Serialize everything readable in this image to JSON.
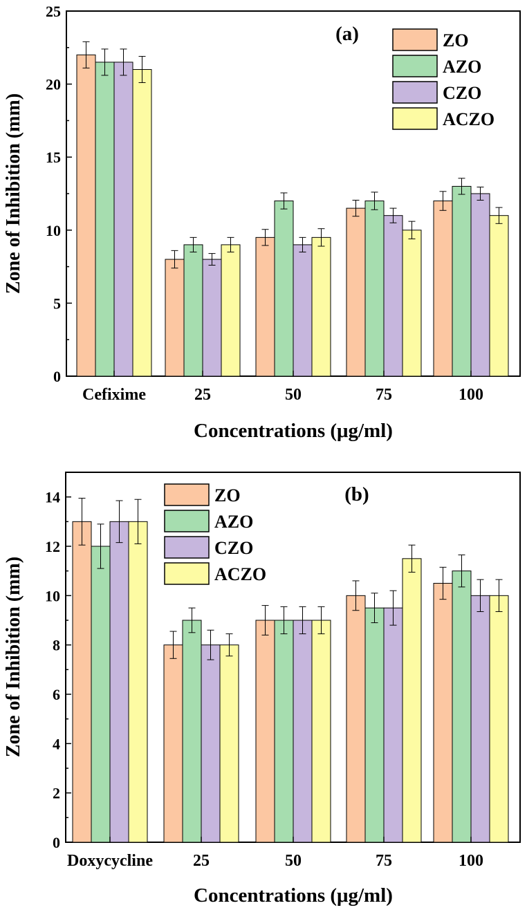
{
  "colors": {
    "ZO": "#FCC7A2",
    "AZO": "#A6DDAF",
    "CZO": "#C6B6DD",
    "ACZO": "#FDFBA3",
    "stroke": "#000000"
  },
  "chart_data": [
    {
      "type": "bar",
      "panel_label": "(a)",
      "xlabel": "Concentrations (μg/ml)",
      "ylabel": "Zone of Inhibition (mm)",
      "ylim": [
        0,
        25
      ],
      "yticks": [
        0,
        5,
        10,
        15,
        20,
        25
      ],
      "y_tick_labels": [
        "0",
        "5",
        "10",
        "15",
        "20",
        "25"
      ],
      "legend_position": "top-right",
      "categories": [
        "Cefixime",
        "25",
        "50",
        "75",
        "100"
      ],
      "series": [
        {
          "name": "ZO",
          "color_key": "ZO",
          "values": [
            22,
            8,
            9.5,
            11.5,
            12
          ],
          "errors": [
            0.9,
            0.6,
            0.55,
            0.55,
            0.65
          ]
        },
        {
          "name": "AZO",
          "color_key": "AZO",
          "values": [
            21.5,
            9,
            12,
            12,
            13
          ],
          "errors": [
            0.9,
            0.5,
            0.55,
            0.6,
            0.55
          ]
        },
        {
          "name": "CZO",
          "color_key": "CZO",
          "values": [
            21.5,
            8,
            9,
            11,
            12.5
          ],
          "errors": [
            0.9,
            0.4,
            0.5,
            0.5,
            0.45
          ]
        },
        {
          "name": "ACZO",
          "color_key": "ACZO",
          "values": [
            21,
            9,
            9.5,
            10,
            11
          ],
          "errors": [
            0.9,
            0.5,
            0.6,
            0.6,
            0.55
          ]
        }
      ]
    },
    {
      "type": "bar",
      "panel_label": "(b)",
      "xlabel": "Concentrations (μg/ml)",
      "ylabel": "Zone of Inhibition (mm)",
      "ylim": [
        0,
        15
      ],
      "yticks": [
        0,
        2,
        4,
        6,
        8,
        10,
        12,
        14
      ],
      "y_tick_labels": [
        "0",
        "2",
        "4",
        "6",
        "8",
        "10",
        "12",
        "14"
      ],
      "legend_position": "top-left",
      "categories": [
        "Doxycycline",
        "25",
        "50",
        "75",
        "100"
      ],
      "series": [
        {
          "name": "ZO",
          "color_key": "ZO",
          "values": [
            13,
            8,
            9,
            10,
            10.5
          ],
          "errors": [
            0.95,
            0.55,
            0.6,
            0.6,
            0.65
          ]
        },
        {
          "name": "AZO",
          "color_key": "AZO",
          "values": [
            12,
            9,
            9,
            9.5,
            11
          ],
          "errors": [
            0.9,
            0.5,
            0.55,
            0.6,
            0.65
          ]
        },
        {
          "name": "CZO",
          "color_key": "CZO",
          "values": [
            13,
            8,
            9,
            9.5,
            10
          ],
          "errors": [
            0.85,
            0.6,
            0.55,
            0.7,
            0.65
          ]
        },
        {
          "name": "ACZO",
          "color_key": "ACZO",
          "values": [
            13,
            8,
            9,
            11.5,
            10
          ],
          "errors": [
            0.9,
            0.45,
            0.55,
            0.55,
            0.65
          ]
        }
      ]
    }
  ]
}
